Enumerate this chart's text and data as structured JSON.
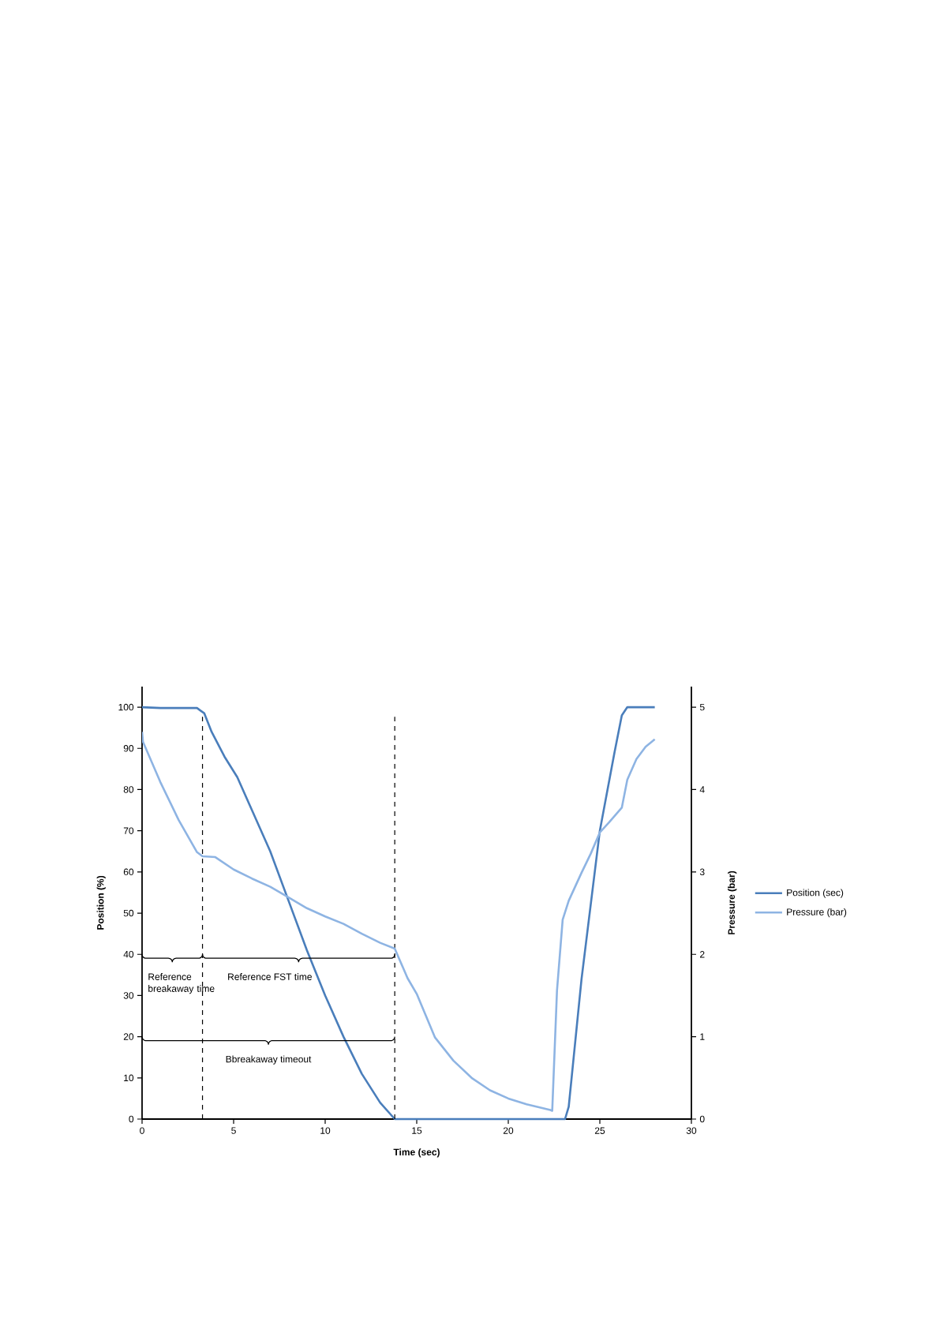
{
  "chart_data": {
    "type": "line",
    "xlabel": "Time (sec)",
    "ylabel": "Position (%)",
    "y2label": "Pressure (bar)",
    "xlim": [
      0,
      30
    ],
    "xticks": [
      0,
      5,
      10,
      15,
      20,
      25,
      30
    ],
    "ylim": [
      0,
      105
    ],
    "yticks": [
      0,
      10,
      20,
      30,
      40,
      50,
      60,
      70,
      80,
      90,
      100
    ],
    "y2lim": [
      0,
      5.25
    ],
    "y2ticks": [
      0,
      1,
      2,
      3,
      4,
      5
    ],
    "legend": "right",
    "line_style": "solid",
    "series": [
      {
        "name": "Position (sec)",
        "color": "#4a7ebb",
        "x": [
          0,
          1,
          2,
          3,
          3.4,
          3.8,
          4.5,
          5.2,
          6,
          7,
          8,
          9,
          9.5,
          10,
          11,
          12,
          13,
          13.8,
          14,
          23.1,
          23.3,
          24,
          25,
          25.8,
          26.2,
          26.5,
          27,
          28
        ],
        "values": [
          100,
          99.8,
          99.8,
          99.8,
          98.5,
          94,
          88,
          83,
          75,
          65,
          53,
          41,
          35.5,
          30,
          20,
          11,
          4,
          0,
          0,
          0,
          3,
          34,
          70,
          89,
          98,
          100,
          100,
          100
        ]
      },
      {
        "name": "Pressure (bar)",
        "color": "#8eb4e3",
        "axis": "y2",
        "x": [
          0,
          0.05,
          1,
          2,
          3,
          3.3,
          4,
          5,
          6,
          7,
          8,
          9,
          10,
          11,
          12,
          13,
          13.8,
          14.5,
          15,
          16,
          17,
          18,
          19,
          20,
          21,
          22.3,
          22.4,
          22.66,
          22.97,
          23.3,
          24,
          24.5,
          25,
          25.5,
          26.2,
          26.5,
          27,
          27.5,
          28
        ],
        "values": [
          4.7,
          4.58,
          4.09,
          3.63,
          3.24,
          3.19,
          3.18,
          3.03,
          2.92,
          2.82,
          2.69,
          2.56,
          2.46,
          2.37,
          2.25,
          2.14,
          2.07,
          1.71,
          1.52,
          0.99,
          0.71,
          0.5,
          0.35,
          0.25,
          0.18,
          0.11,
          0.1,
          1.56,
          2.42,
          2.65,
          2.99,
          3.22,
          3.48,
          3.6,
          3.78,
          4.12,
          4.37,
          4.52,
          4.61
        ]
      }
    ],
    "ref_lines": [
      {
        "axis": "x",
        "value": 3.3,
        "line_style": "dashed",
        "color": "#000000"
      },
      {
        "axis": "x",
        "value": 13.8,
        "line_style": "dashed",
        "color": "#000000"
      }
    ],
    "annotations": [
      "Reference breakaway time",
      "Reference  FST time",
      "Bbreakaway timeout"
    ]
  }
}
